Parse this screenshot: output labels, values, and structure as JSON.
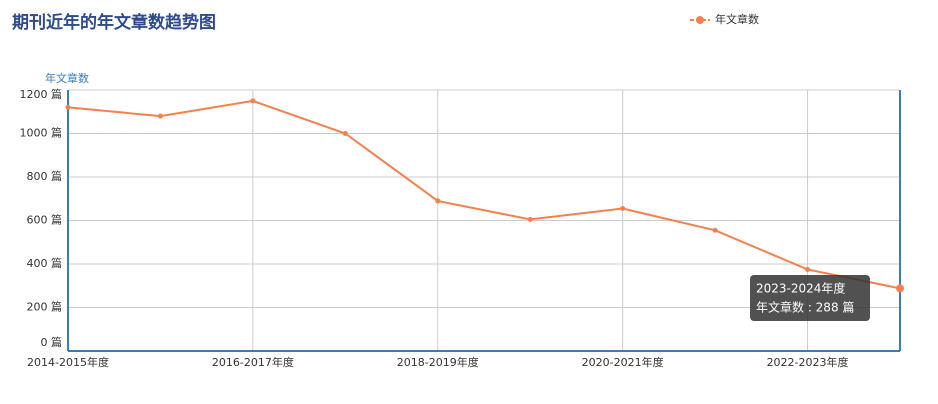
{
  "chart_data": {
    "type": "line",
    "title": "期刊近年的年文章数趋势图",
    "y_label": "年文章数",
    "categories": [
      "2014-2015年度",
      null,
      "2016-2017年度",
      null,
      "2018-2019年度",
      null,
      "2020-2021年度",
      null,
      "2022-2023年度",
      null
    ],
    "series": [
      {
        "name": "年文章数",
        "color": "#f5804d",
        "values": [
          1120,
          1080,
          1150,
          1000,
          690,
          605,
          655,
          555,
          375,
          288
        ]
      }
    ],
    "ylim": [
      0,
      1200
    ],
    "yticks": [
      {
        "value": 0,
        "label": "0 篇"
      },
      {
        "value": 200,
        "label": "200 篇"
      },
      {
        "value": 400,
        "label": "400 篇"
      },
      {
        "value": 600,
        "label": "600 篇"
      },
      {
        "value": 800,
        "label": "800 篇"
      },
      {
        "value": 1000,
        "label": "1000 篇"
      },
      {
        "value": 1200,
        "label": "1200 篇"
      }
    ],
    "grid": true,
    "legend": "top-right",
    "axis_color": "#3a7bb8",
    "tooltip": {
      "title": "2023-2024年度",
      "text": "年文章数 : 288 篇"
    }
  }
}
